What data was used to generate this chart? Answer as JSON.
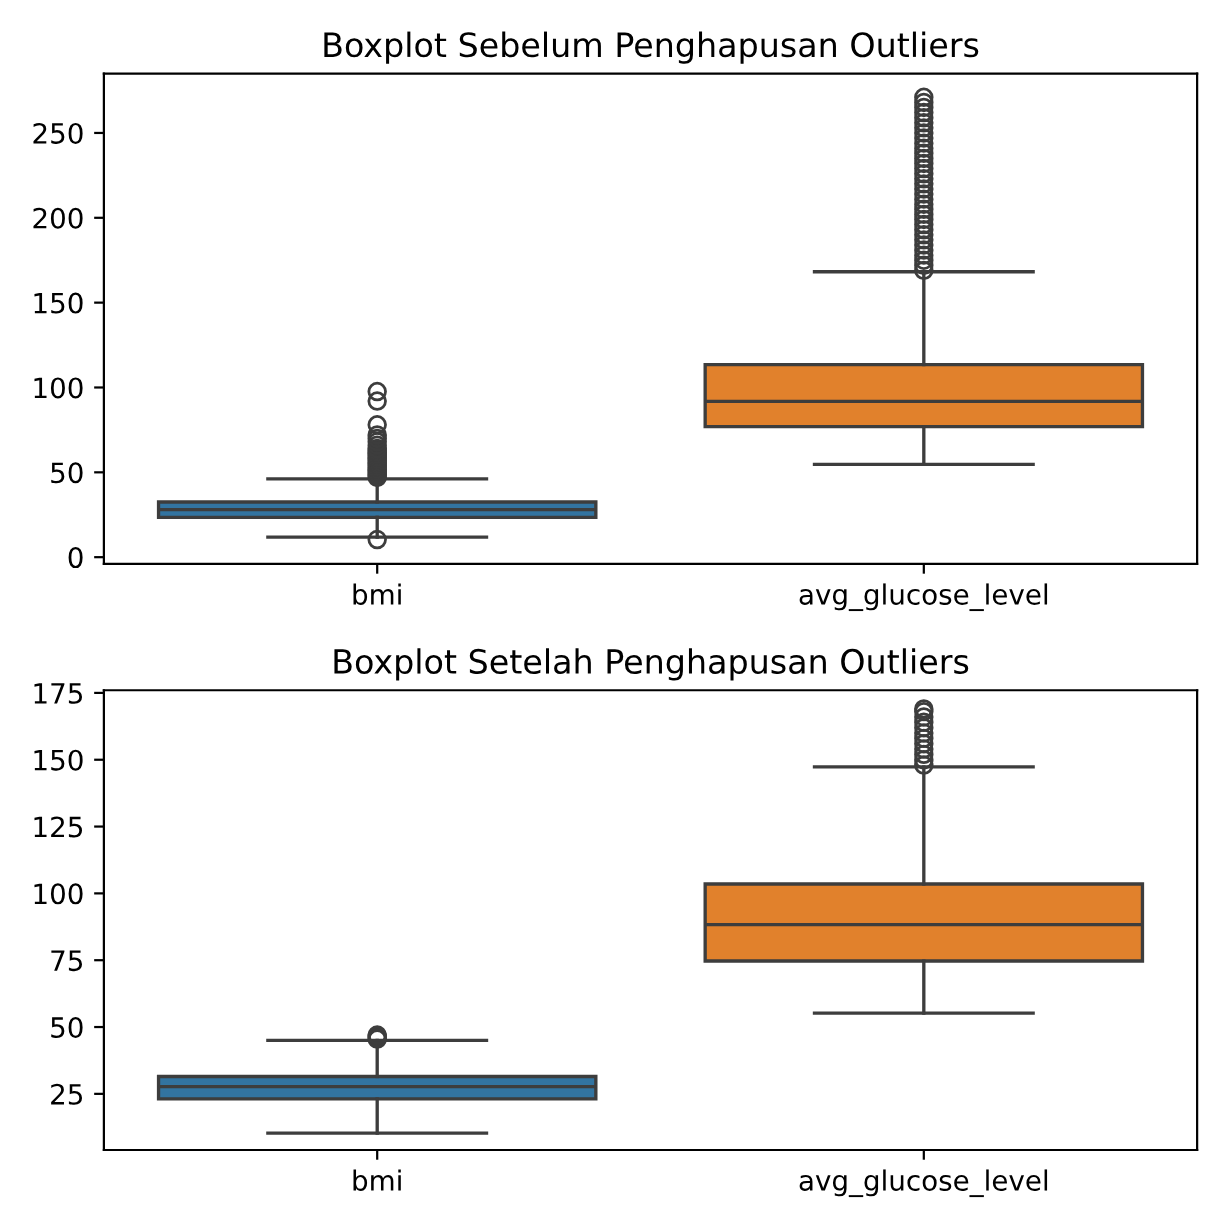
{
  "chart_data": [
    {
      "type": "box",
      "title": "Boxplot Sebelum Penghapusan Outliers",
      "categories": [
        "bmi",
        "avg_glucose_level"
      ],
      "colors": [
        "#3274a1",
        "#e1812c"
      ],
      "ylim": [
        -4,
        285
      ],
      "yticks": [
        0,
        50,
        100,
        150,
        200,
        250
      ],
      "boxes": [
        {
          "low": 11.8,
          "q1": 23.5,
          "median": 28,
          "q3": 32.5,
          "high": 46.1,
          "outliers": [
            10.4,
            47,
            48,
            49,
            50,
            51,
            52,
            53,
            54,
            55,
            56,
            57,
            58,
            59,
            60,
            61,
            62,
            63,
            64,
            66,
            68,
            70,
            72,
            78,
            92,
            97.6
          ]
        },
        {
          "low": 54.7,
          "q1": 76.9,
          "median": 91.8,
          "q3": 113.5,
          "high": 168.2,
          "outliers": [
            169,
            172,
            175,
            178,
            181,
            184,
            187,
            190,
            193,
            196,
            199,
            202,
            205,
            208,
            211,
            214,
            217,
            220,
            223,
            226,
            229,
            232,
            235,
            238,
            241,
            244,
            247,
            250,
            253,
            256,
            259,
            262,
            265,
            268,
            271
          ]
        }
      ]
    },
    {
      "type": "box",
      "title": "Boxplot Setelah Penghapusan Outliers",
      "categories": [
        "bmi",
        "avg_glucose_level"
      ],
      "colors": [
        "#3274a1",
        "#e1812c"
      ],
      "ylim": [
        4,
        176
      ],
      "yticks": [
        25,
        50,
        75,
        100,
        125,
        150,
        175
      ],
      "boxes": [
        {
          "low": 10.3,
          "q1": 23.1,
          "median": 27.7,
          "q3": 31.5,
          "high": 45,
          "outliers": [
            45.5,
            46,
            46.5,
            47
          ]
        },
        {
          "low": 55.2,
          "q1": 74.7,
          "median": 88.3,
          "q3": 103.5,
          "high": 147.3,
          "outliers": [
            148,
            150,
            152,
            154,
            156,
            158,
            160,
            162,
            164,
            166,
            168,
            169
          ]
        }
      ]
    }
  ]
}
